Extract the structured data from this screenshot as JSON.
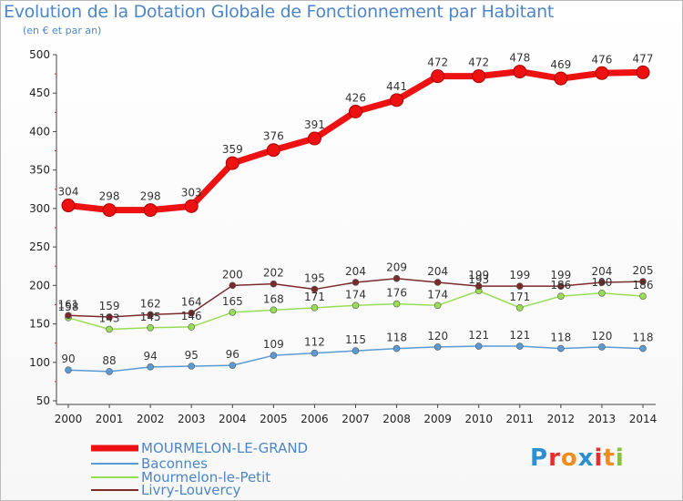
{
  "title": "Evolution de la Dotation Globale de Fonctionnement par Habitant",
  "subtitle": "(en € et par an)",
  "brand": {
    "letters": [
      "P",
      "r",
      "o",
      "x",
      "i",
      "t",
      "i"
    ],
    "colors": [
      "#2e8fd0",
      "#e0312c",
      "#f08d1c",
      "#2e8fd0",
      "#e0312c",
      "#f08d1c",
      "#86c23c"
    ]
  },
  "chart_data": {
    "type": "line",
    "title": "Evolution de la Dotation Globale de Fonctionnement par Habitant",
    "subtitle": "(en € et par an)",
    "xlabel": "",
    "ylabel": "",
    "ylim": [
      50,
      500
    ],
    "yticks": [
      50,
      100,
      150,
      200,
      250,
      300,
      350,
      400,
      450,
      500
    ],
    "x": [
      2000,
      2001,
      2002,
      2003,
      2004,
      2005,
      2006,
      2007,
      2008,
      2009,
      2010,
      2011,
      2012,
      2013,
      2014
    ],
    "series": [
      {
        "name": "MOURMELON-LE-GRAND",
        "color": "#ee1111",
        "values": [
          304,
          298,
          298,
          303,
          359,
          376,
          391,
          426,
          441,
          472,
          472,
          478,
          469,
          476,
          477
        ]
      },
      {
        "name": "Baconnes",
        "color": "#5b9bd5",
        "values": [
          90,
          88,
          94,
          95,
          96,
          109,
          112,
          115,
          118,
          120,
          121,
          121,
          118,
          120,
          118
        ]
      },
      {
        "name": "Mourmelon-le-Petit",
        "color": "#99dd55",
        "values": [
          158,
          143,
          145,
          146,
          165,
          168,
          171,
          174,
          176,
          174,
          193,
          171,
          186,
          190,
          186
        ]
      },
      {
        "name": "Livry-Louvercy",
        "color": "#7a2a2a",
        "values": [
          161,
          159,
          162,
          164,
          200,
          202,
          195,
          204,
          209,
          204,
          199,
          199,
          199,
          204,
          205
        ]
      }
    ],
    "legend_position": "bottom-left"
  }
}
